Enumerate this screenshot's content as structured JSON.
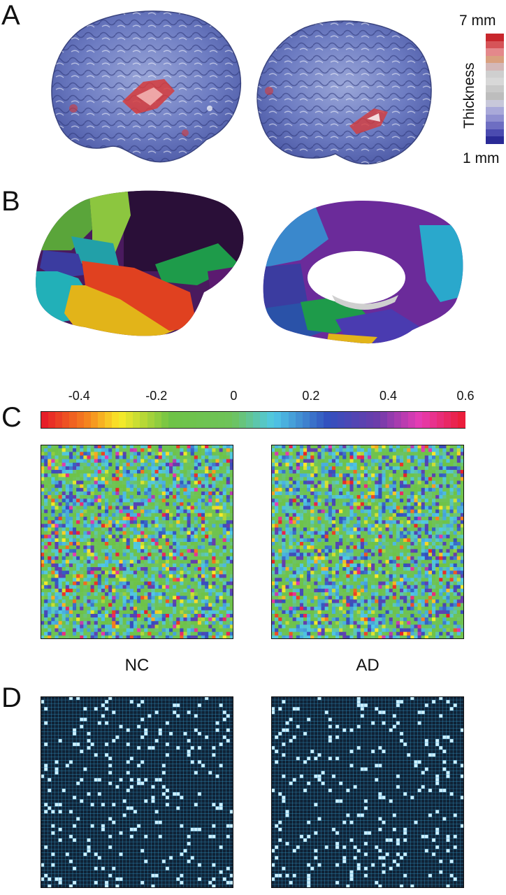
{
  "panels": {
    "a": "A",
    "b": "B",
    "c": "C",
    "d": "D"
  },
  "thickness_scale": {
    "max_label": "7 mm",
    "min_label": "1 mm",
    "axis_label": "Thickness",
    "colors_top_to_bottom": [
      "#c8262c",
      "#d65458",
      "#e4888b",
      "#d9a07f",
      "#d4b8b8",
      "#cfcfcf",
      "#d8d8d8",
      "#c9c9c9",
      "#bdbdbd",
      "#c8c8da",
      "#a9a9d9",
      "#8f8fd0",
      "#6e6ec2",
      "#4b4bb0",
      "#2a2a96"
    ]
  },
  "correlation_scale": {
    "ticks": [
      "-0.4",
      "-0.2",
      "0",
      "0.2",
      "0.4",
      "0.6"
    ],
    "tick_values": [
      -0.4,
      -0.2,
      0,
      0.2,
      0.4,
      0.6
    ],
    "range": [
      -0.5,
      0.6
    ]
  },
  "matrices": {
    "left_label": "NC",
    "right_label": "AD"
  },
  "colors": {
    "binary_background": "#0f2236",
    "binary_grid": "#3aa6d6",
    "binary_on": "#cdeefc",
    "brain_blue": "#6a7bc0",
    "brain_red": "#d63b3b"
  }
}
